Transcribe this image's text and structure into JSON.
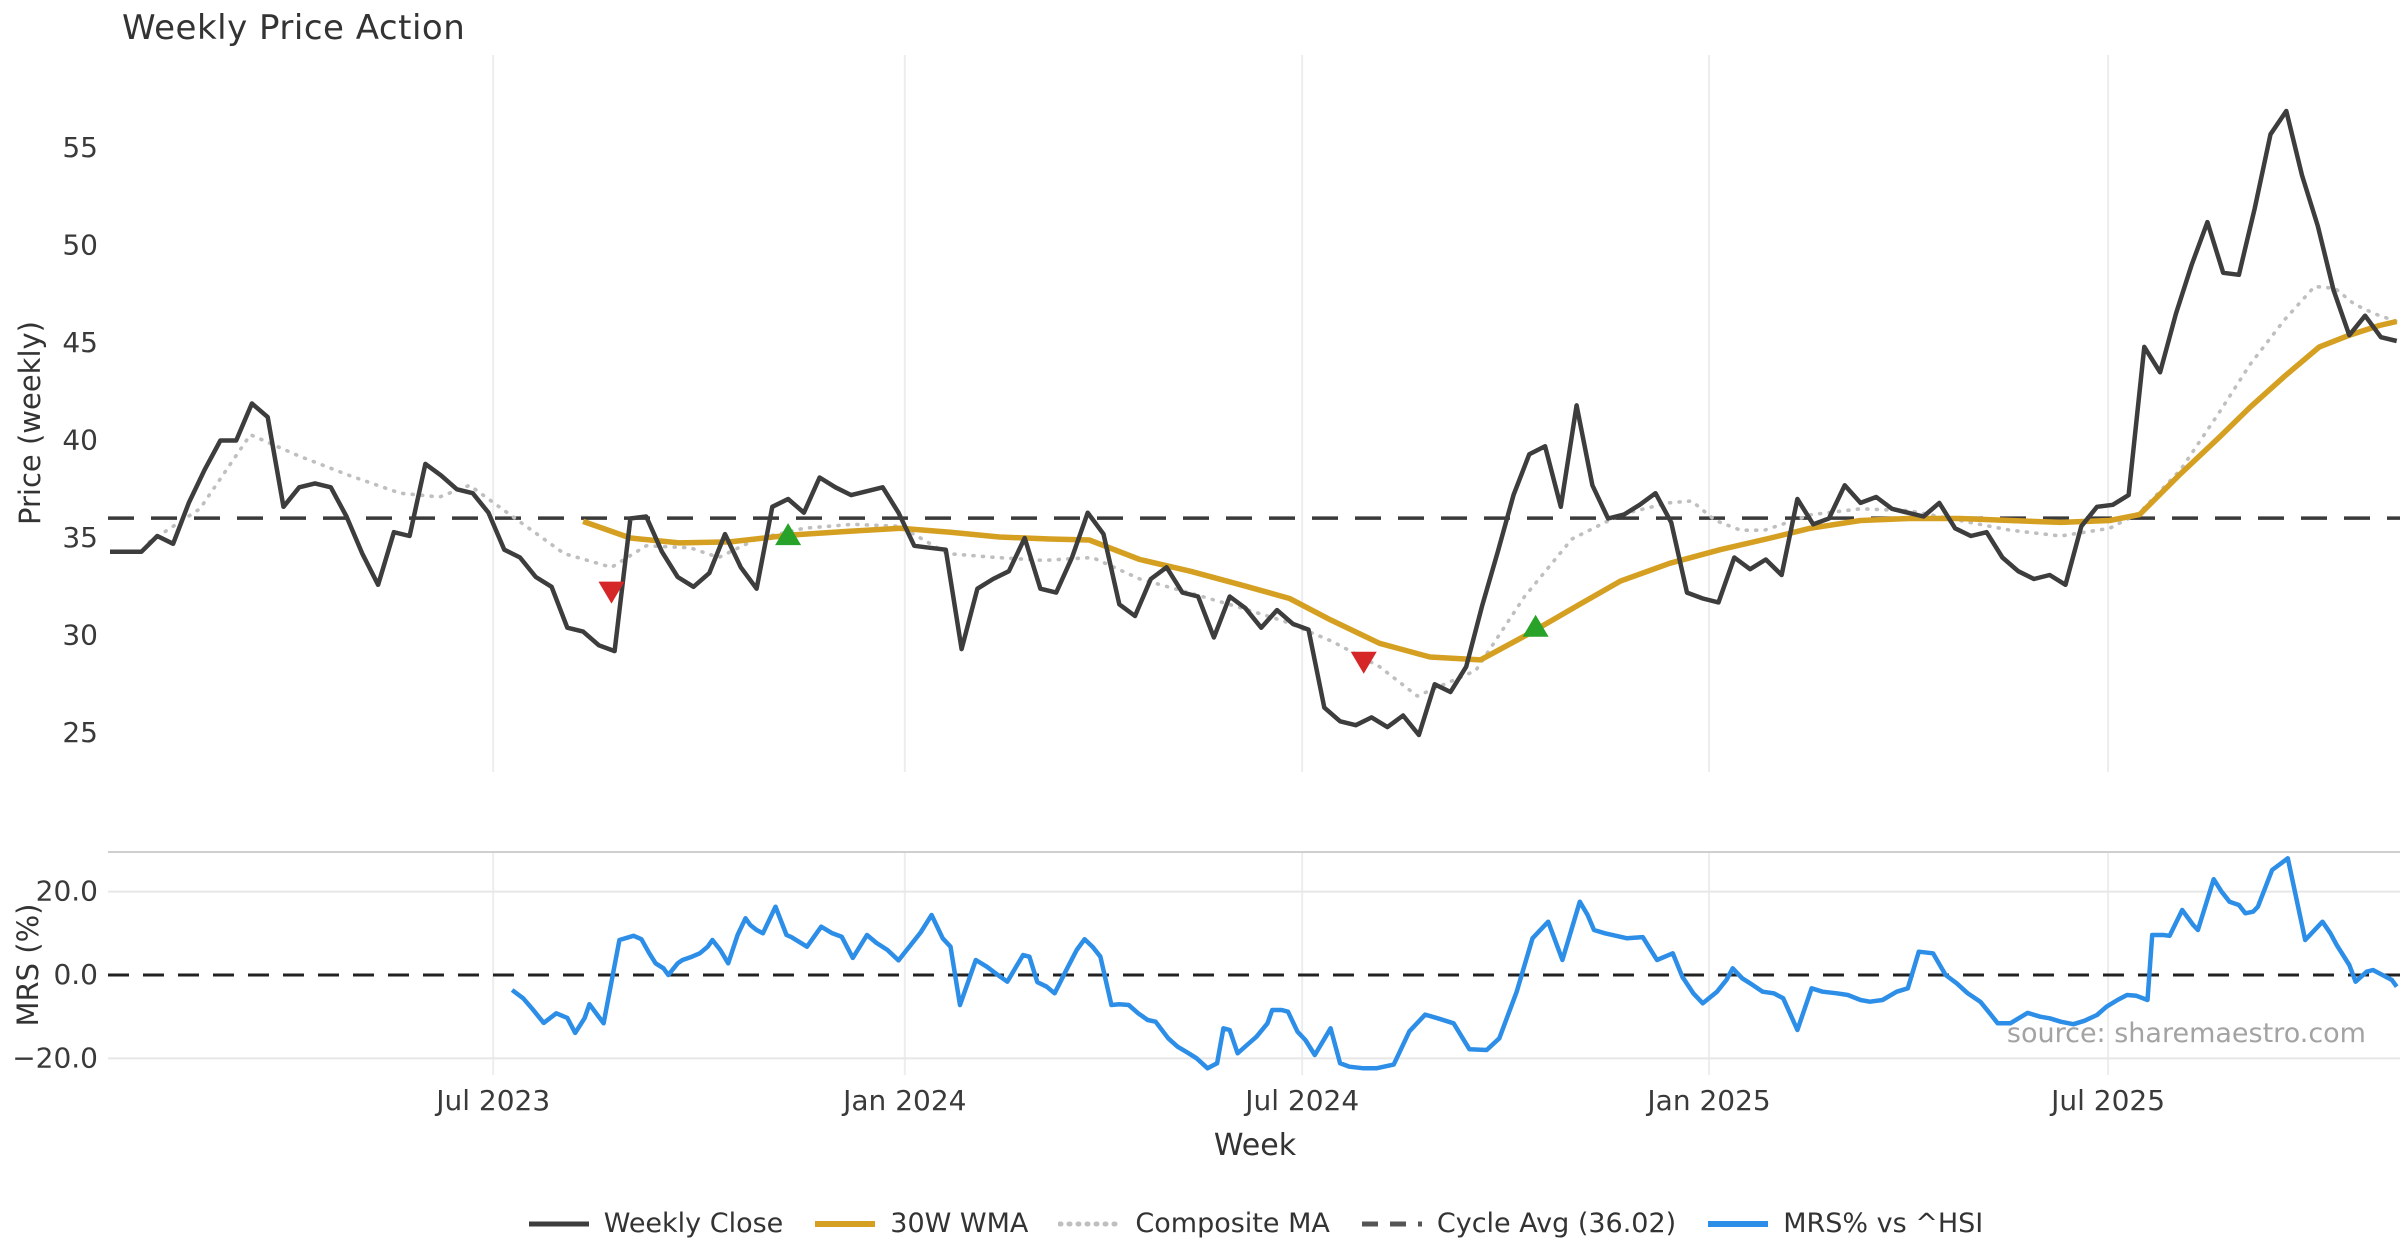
{
  "title": "Weekly Price Action",
  "source_note": "source: sharemaestro.com",
  "colors": {
    "weekly_close": "#3d3d3d",
    "wma_30w": "#D5A021",
    "composite_ma": "#bfbfbf",
    "cycle_avg": "#3a3a3a",
    "mrs_line": "#2D8EE8",
    "buy_marker": "#28A228",
    "sell_marker": "#D62728",
    "gridline": "#ededed",
    "mrs_gridline": "#e7e7e7",
    "panel_border": "#cfcfcf",
    "tick_text": "#3a3a3a"
  },
  "axes": {
    "price": {
      "label": "Price (weekly)",
      "ticks": [
        55,
        50,
        45,
        40,
        35,
        30,
        25
      ]
    },
    "mrs": {
      "label": "MRS (%)",
      "ticks": [
        {
          "label": "20.0",
          "value": 20
        },
        {
          "label": "0.0",
          "value": 0
        },
        {
          "label": "−20.0",
          "value": -20
        }
      ]
    },
    "x": {
      "label": "Week",
      "ticks": [
        {
          "label": "Jul 2023",
          "week": 24.3
        },
        {
          "label": "Jan 2024",
          "week": 50.4
        },
        {
          "label": "Jul 2024",
          "week": 75.6
        },
        {
          "label": "Jan 2025",
          "week": 101.4
        },
        {
          "label": "Jul 2025",
          "week": 126.7
        }
      ]
    }
  },
  "legend": [
    {
      "id": "weekly_close",
      "label": "Weekly Close",
      "style": "solid-dark"
    },
    {
      "id": "wma_30w",
      "label": "30W WMA",
      "style": "solid-gold"
    },
    {
      "id": "composite_ma",
      "label": "Composite MA",
      "style": "dotted-gray"
    },
    {
      "id": "cycle_avg",
      "label": "Cycle Avg (36.02)",
      "style": "dashed-dark"
    },
    {
      "id": "mrs_line",
      "label": "MRS% vs ^HSI",
      "style": "solid-blue"
    }
  ],
  "chart_data": {
    "type": "line",
    "title": "Weekly Price Action",
    "xlabel": "Week",
    "panels": [
      {
        "name": "price",
        "ylabel": "Price (weekly)",
        "ylim": [
          23.5,
          58.5
        ],
        "grid": "vertical-only"
      },
      {
        "name": "mrs",
        "ylabel": "MRS (%)",
        "ylim": [
          -26,
          29
        ],
        "grid": "horizontal+vertical"
      }
    ],
    "cycle_avg_value": 36.02,
    "mrs_zero_value": 0.0,
    "weekly_close": [
      34.3,
      34.3,
      34.3,
      35.1,
      34.7,
      36.8,
      38.5,
      40.0,
      40.0,
      41.9,
      41.2,
      36.6,
      37.6,
      37.8,
      37.6,
      36.1,
      34.2,
      32.6,
      35.3,
      35.1,
      38.8,
      38.2,
      37.5,
      37.3,
      36.3,
      34.4,
      34.0,
      33.0,
      32.5,
      30.4,
      30.2,
      29.5,
      29.2,
      36.0,
      36.1,
      34.3,
      33.0,
      32.5,
      33.2,
      35.2,
      33.5,
      32.4,
      36.6,
      37.0,
      36.3,
      38.1,
      37.6,
      37.2,
      37.4,
      37.6,
      36.3,
      34.6,
      34.5,
      34.4,
      29.3,
      32.4,
      32.9,
      33.3,
      35.0,
      32.4,
      32.2,
      34.0,
      36.3,
      35.2,
      31.6,
      31.0,
      32.9,
      33.5,
      32.2,
      32.0,
      29.9,
      32.0,
      31.4,
      30.4,
      31.3,
      30.6,
      30.3,
      26.3,
      25.6,
      25.4,
      25.8,
      25.3,
      25.9,
      24.9,
      27.5,
      27.1,
      28.4,
      31.5,
      34.3,
      37.2,
      39.3,
      39.7,
      36.6,
      41.8,
      37.7,
      36.0,
      36.2,
      36.7,
      37.3,
      35.8,
      32.2,
      31.9,
      31.7,
      34.0,
      33.4,
      33.9,
      33.1,
      37.0,
      35.7,
      36.0,
      37.7,
      36.8,
      37.1,
      36.5,
      36.3,
      36.1,
      36.8,
      35.5,
      35.1,
      35.3,
      34.0,
      33.3,
      32.9,
      33.1,
      32.6,
      35.6,
      36.6,
      36.7,
      37.2,
      44.8,
      43.5,
      46.5,
      49.0,
      51.2,
      48.6,
      48.5,
      51.9,
      55.7,
      56.9,
      53.6,
      51.0,
      47.7,
      45.4,
      46.4,
      45.3,
      45.1
    ],
    "wma_30w": [
      [
        30,
        35.85
      ],
      [
        33,
        35.0
      ],
      [
        36.1,
        34.75
      ],
      [
        39.3,
        34.8
      ],
      [
        43.1,
        35.15
      ],
      [
        46.9,
        35.35
      ],
      [
        50.1,
        35.5
      ],
      [
        53.3,
        35.3
      ],
      [
        56.4,
        35.05
      ],
      [
        59.6,
        34.95
      ],
      [
        62.1,
        34.9
      ],
      [
        65.3,
        33.9
      ],
      [
        68.5,
        33.3
      ],
      [
        71.7,
        32.6
      ],
      [
        74.8,
        31.9
      ],
      [
        77.4,
        30.8
      ],
      [
        80.5,
        29.6
      ],
      [
        83.7,
        28.9
      ],
      [
        86.9,
        28.75
      ],
      [
        90.0,
        30.1
      ],
      [
        93.2,
        31.6
      ],
      [
        95.8,
        32.8
      ],
      [
        98.9,
        33.7
      ],
      [
        102.1,
        34.4
      ],
      [
        105.3,
        35.0
      ],
      [
        107.8,
        35.5
      ],
      [
        111.0,
        35.9
      ],
      [
        114.1,
        36.0
      ],
      [
        117.3,
        36.0
      ],
      [
        120.5,
        35.9
      ],
      [
        123.7,
        35.8
      ],
      [
        126.8,
        35.9
      ],
      [
        128.7,
        36.2
      ],
      [
        131.3,
        38.3
      ],
      [
        133.8,
        40.2
      ],
      [
        135.7,
        41.7
      ],
      [
        137.9,
        43.3
      ],
      [
        140.1,
        44.8
      ],
      [
        142.0,
        45.4
      ],
      [
        143.9,
        45.9
      ],
      [
        145.0,
        46.1
      ]
    ],
    "composite_ma": [
      [
        2.5,
        34.8
      ],
      [
        5.7,
        36.5
      ],
      [
        8.9,
        40.3
      ],
      [
        12.0,
        39.2
      ],
      [
        15.2,
        38.2
      ],
      [
        18.4,
        37.3
      ],
      [
        20.9,
        37.1
      ],
      [
        22.8,
        37.7
      ],
      [
        25.7,
        36.0
      ],
      [
        28.8,
        34.2
      ],
      [
        31.8,
        33.5
      ],
      [
        34.0,
        34.6
      ],
      [
        36.8,
        34.5
      ],
      [
        38.6,
        34.0
      ],
      [
        41.0,
        34.95
      ],
      [
        44.0,
        35.5
      ],
      [
        47.1,
        35.7
      ],
      [
        50.1,
        35.6
      ],
      [
        53.1,
        34.2
      ],
      [
        56.2,
        34.0
      ],
      [
        59.2,
        33.85
      ],
      [
        62.3,
        34.0
      ],
      [
        65.3,
        32.9
      ],
      [
        68.4,
        32.2
      ],
      [
        71.4,
        31.5
      ],
      [
        74.4,
        30.75
      ],
      [
        77.5,
        29.7
      ],
      [
        80.5,
        28.4
      ],
      [
        82.9,
        26.9
      ],
      [
        86.6,
        28.2
      ],
      [
        89.7,
        32.0
      ],
      [
        92.7,
        34.95
      ],
      [
        95.8,
        36.2
      ],
      [
        98.8,
        36.8
      ],
      [
        100.3,
        36.9
      ],
      [
        101.8,
        35.9
      ],
      [
        103.4,
        35.4
      ],
      [
        104.9,
        35.4
      ],
      [
        107.9,
        36.2
      ],
      [
        111.0,
        36.5
      ],
      [
        114.1,
        36.4
      ],
      [
        117.3,
        35.9
      ],
      [
        120.5,
        35.4
      ],
      [
        123.7,
        35.1
      ],
      [
        126.8,
        35.5
      ],
      [
        128.7,
        36.3
      ],
      [
        131.3,
        38.5
      ],
      [
        133.8,
        41.5
      ],
      [
        135.7,
        43.9
      ],
      [
        137.9,
        46.2
      ],
      [
        139.8,
        47.9
      ],
      [
        141.1,
        47.8
      ],
      [
        142.3,
        47.0
      ],
      [
        143.6,
        46.5
      ],
      [
        145.0,
        46.1
      ]
    ],
    "mrs_pct_vs_hsi": [
      [
        25.5,
        -3.6
      ],
      [
        26.2,
        -5.6
      ],
      [
        26.8,
        -8.2
      ],
      [
        27.5,
        -11.5
      ],
      [
        28.3,
        -9.2
      ],
      [
        29.0,
        -10.3
      ],
      [
        29.5,
        -13.9
      ],
      [
        30.1,
        -10.3
      ],
      [
        30.4,
        -7.0
      ],
      [
        31.3,
        -11.6
      ],
      [
        32.3,
        8.4
      ],
      [
        33.2,
        9.4
      ],
      [
        33.7,
        8.6
      ],
      [
        34.2,
        5.2
      ],
      [
        34.6,
        2.8
      ],
      [
        35.1,
        1.6
      ],
      [
        35.4,
        0.0
      ],
      [
        36.0,
        2.8
      ],
      [
        36.3,
        3.6
      ],
      [
        36.9,
        4.4
      ],
      [
        37.4,
        5.2
      ],
      [
        37.9,
        6.8
      ],
      [
        38.2,
        8.4
      ],
      [
        38.7,
        6.0
      ],
      [
        39.2,
        2.8
      ],
      [
        39.8,
        9.6
      ],
      [
        40.3,
        13.6
      ],
      [
        40.6,
        12.0
      ],
      [
        41.0,
        10.8
      ],
      [
        41.4,
        10.0
      ],
      [
        42.2,
        16.4
      ],
      [
        42.9,
        9.6
      ],
      [
        43.2,
        9.1
      ],
      [
        44.2,
        6.8
      ],
      [
        45.1,
        11.6
      ],
      [
        45.8,
        10.0
      ],
      [
        46.4,
        9.2
      ],
      [
        47.1,
        4.1
      ],
      [
        48.0,
        9.6
      ],
      [
        48.6,
        7.7
      ],
      [
        49.3,
        6.0
      ],
      [
        50.0,
        3.5
      ],
      [
        51.4,
        10.2
      ],
      [
        52.1,
        14.4
      ],
      [
        52.8,
        8.8
      ],
      [
        53.3,
        6.8
      ],
      [
        53.9,
        -7.2
      ],
      [
        54.9,
        3.6
      ],
      [
        55.6,
        2.0
      ],
      [
        56.3,
        0.0
      ],
      [
        56.9,
        -1.6
      ],
      [
        57.9,
        4.8
      ],
      [
        58.3,
        4.4
      ],
      [
        58.8,
        -1.7
      ],
      [
        59.4,
        -2.8
      ],
      [
        59.9,
        -4.4
      ],
      [
        60.7,
        1.6
      ],
      [
        61.3,
        6.0
      ],
      [
        61.8,
        8.6
      ],
      [
        62.3,
        6.8
      ],
      [
        62.8,
        4.4
      ],
      [
        63.5,
        -7.2
      ],
      [
        64.0,
        -7.0
      ],
      [
        64.6,
        -7.2
      ],
      [
        65.2,
        -9.2
      ],
      [
        65.8,
        -10.8
      ],
      [
        66.3,
        -11.2
      ],
      [
        67.1,
        -15.2
      ],
      [
        67.7,
        -17.2
      ],
      [
        68.4,
        -18.8
      ],
      [
        68.9,
        -20.0
      ],
      [
        69.6,
        -22.4
      ],
      [
        70.2,
        -21.2
      ],
      [
        70.6,
        -12.8
      ],
      [
        71.0,
        -13.2
      ],
      [
        71.5,
        -18.8
      ],
      [
        72.1,
        -16.8
      ],
      [
        72.7,
        -14.8
      ],
      [
        73.4,
        -11.6
      ],
      [
        73.7,
        -8.4
      ],
      [
        74.3,
        -8.4
      ],
      [
        74.7,
        -8.8
      ],
      [
        75.3,
        -13.6
      ],
      [
        75.8,
        -15.6
      ],
      [
        76.4,
        -19.2
      ],
      [
        77.4,
        -12.8
      ],
      [
        78.0,
        -21.2
      ],
      [
        78.6,
        -22.0
      ],
      [
        79.5,
        -22.4
      ],
      [
        80.3,
        -22.4
      ],
      [
        81.4,
        -21.5
      ],
      [
        82.4,
        -13.5
      ],
      [
        83.4,
        -9.5
      ],
      [
        84.3,
        -10.5
      ],
      [
        85.2,
        -11.6
      ],
      [
        86.2,
        -17.8
      ],
      [
        87.3,
        -18.0
      ],
      [
        88.1,
        -15.2
      ],
      [
        89.2,
        -4.0
      ],
      [
        90.2,
        8.8
      ],
      [
        91.2,
        12.8
      ],
      [
        92.1,
        3.6
      ],
      [
        93.2,
        17.6
      ],
      [
        93.7,
        14.4
      ],
      [
        94.1,
        10.8
      ],
      [
        94.8,
        10.0
      ],
      [
        96.2,
        8.8
      ],
      [
        97.2,
        9.1
      ],
      [
        98.1,
        3.6
      ],
      [
        99.1,
        5.2
      ],
      [
        99.7,
        -0.4
      ],
      [
        100.4,
        -4.4
      ],
      [
        101.0,
        -6.8
      ],
      [
        101.9,
        -4.0
      ],
      [
        102.5,
        -1.2
      ],
      [
        102.9,
        1.6
      ],
      [
        103.5,
        -0.8
      ],
      [
        104.0,
        -2.0
      ],
      [
        104.8,
        -4.0
      ],
      [
        105.5,
        -4.4
      ],
      [
        106.1,
        -5.6
      ],
      [
        107.0,
        -13.2
      ],
      [
        107.9,
        -3.2
      ],
      [
        108.6,
        -4.0
      ],
      [
        109.5,
        -4.4
      ],
      [
        110.2,
        -4.8
      ],
      [
        111.0,
        -6.0
      ],
      [
        111.6,
        -6.4
      ],
      [
        112.4,
        -6.0
      ],
      [
        113.3,
        -4.0
      ],
      [
        114.0,
        -3.2
      ],
      [
        114.7,
        5.6
      ],
      [
        115.6,
        5.2
      ],
      [
        116.4,
        0.0
      ],
      [
        117.1,
        -2.0
      ],
      [
        117.8,
        -4.4
      ],
      [
        118.6,
        -6.4
      ],
      [
        119.2,
        -9.2
      ],
      [
        119.7,
        -11.6
      ],
      [
        120.5,
        -11.6
      ],
      [
        121.6,
        -9.1
      ],
      [
        122.4,
        -10.0
      ],
      [
        123.0,
        -10.4
      ],
      [
        123.7,
        -11.2
      ],
      [
        124.5,
        -11.8
      ],
      [
        125.2,
        -11.0
      ],
      [
        126.0,
        -9.6
      ],
      [
        126.6,
        -7.6
      ],
      [
        127.3,
        -6.0
      ],
      [
        127.9,
        -4.8
      ],
      [
        128.5,
        -5.0
      ],
      [
        129.2,
        -6.0
      ],
      [
        129.5,
        9.6
      ],
      [
        130.2,
        9.6
      ],
      [
        130.6,
        9.4
      ],
      [
        131.4,
        15.6
      ],
      [
        132.1,
        12.0
      ],
      [
        132.4,
        10.8
      ],
      [
        133.4,
        23.0
      ],
      [
        133.9,
        20.0
      ],
      [
        134.4,
        17.6
      ],
      [
        135.0,
        16.8
      ],
      [
        135.4,
        14.8
      ],
      [
        135.9,
        15.2
      ],
      [
        136.2,
        16.4
      ],
      [
        137.1,
        25.2
      ],
      [
        138.1,
        28.0
      ],
      [
        139.2,
        8.4
      ],
      [
        140.3,
        12.8
      ],
      [
        140.8,
        10.0
      ],
      [
        141.2,
        7.2
      ],
      [
        142.0,
        2.4
      ],
      [
        142.4,
        -1.6
      ],
      [
        143.1,
        0.8
      ],
      [
        143.5,
        1.2
      ],
      [
        144.1,
        0.0
      ],
      [
        144.7,
        -1.2
      ],
      [
        145.0,
        -2.8
      ]
    ],
    "signals": [
      {
        "type": "sell",
        "week": 31.8,
        "value": 32.2
      },
      {
        "type": "buy",
        "week": 43.0,
        "value": 35.2
      },
      {
        "type": "sell",
        "week": 79.5,
        "value": 28.6
      },
      {
        "type": "buy",
        "week": 90.4,
        "value": 30.5
      }
    ]
  }
}
